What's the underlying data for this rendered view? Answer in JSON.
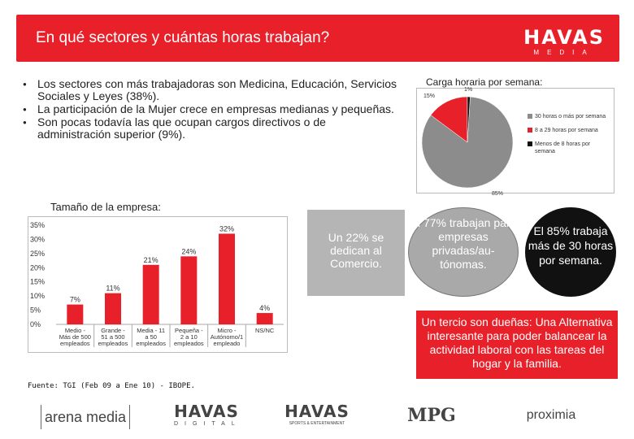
{
  "header": {
    "title": "En qué sectores y cuántas horas trabajan?",
    "logo_main": "HAVAS",
    "logo_sub": "MEDIA"
  },
  "bullets": [
    "Los sectores con más trabajadoras son Medicina, Educación, Servicios Sociales y Leyes (38%).",
    "La participación de la Mujer crece en empresas medianas y pequeñas.",
    "Son pocas todavía las que ocupan cargos directivos o de administración superior (9%)."
  ],
  "pie": {
    "title": "Carga horaria por semana:",
    "labels": {
      "top_small": "1%",
      "top_left": "15%",
      "bottom": "85%"
    },
    "legend": [
      "30 horas o más por semana",
      "8 a 29 horas por semana",
      "Menos de 8 horas por semana"
    ]
  },
  "bar_chart_title": "Tamaño de la empresa:",
  "chart_data": [
    {
      "type": "pie",
      "title": "Carga horaria por semana:",
      "slices": [
        {
          "name": "30 horas o más por semana",
          "value": 85,
          "color": "#8c8c8c"
        },
        {
          "name": "8 a 29 horas por semana",
          "value": 15,
          "color": "#e8202a"
        },
        {
          "name": "Menos de 8 horas por semana",
          "value": 1,
          "color": "#111111"
        }
      ]
    },
    {
      "type": "bar",
      "title": "Tamaño de la empresa:",
      "categories": [
        [
          "Medio -",
          "Más de 500",
          "empleados"
        ],
        [
          "Grande -",
          "51 a 500",
          "empleados"
        ],
        [
          "Media - 11",
          "a 50",
          "empleados"
        ],
        [
          "Pequeña -",
          "2 a 10",
          "empleados"
        ],
        [
          "Micro -",
          "Autónomo/1",
          "empleado"
        ],
        [
          "NS/NC"
        ]
      ],
      "values": [
        7,
        11,
        21,
        24,
        32,
        4
      ],
      "data_labels": [
        "7%",
        "11%",
        "21%",
        "24%",
        "32%",
        "4%"
      ],
      "yticks": [
        "35%",
        "30%",
        "25%",
        "20%",
        "15%",
        "10%",
        "5%",
        "0%"
      ],
      "ylim": [
        0,
        35
      ],
      "color": "#e8202a"
    }
  ],
  "source": "Fuente: TGI (Feb 09 a Ene 10) - IBOPE.",
  "callouts": {
    "grey_box": "Un 22% se dedican al Comercio.",
    "grey_bubble": "El 77% trabajan para empresas privadas/au-tónomas.",
    "black_bubble": "El 85% trabaja más de 30 horas por semana.",
    "red_box": "Un tercio son dueñas: Una Alternativa interesante para poder balancear la actividad laboral con las tareas del hogar y la familia."
  },
  "footer_logos": {
    "arena": "arena media",
    "havas_digital_main": "HAVAS",
    "havas_digital_sub": "DIGITAL",
    "havas_sports_main": "HAVAS",
    "havas_sports_sub": "SPORTS & ENTERTAINMENT",
    "mpg": "MPG",
    "proximia": "proximia"
  }
}
